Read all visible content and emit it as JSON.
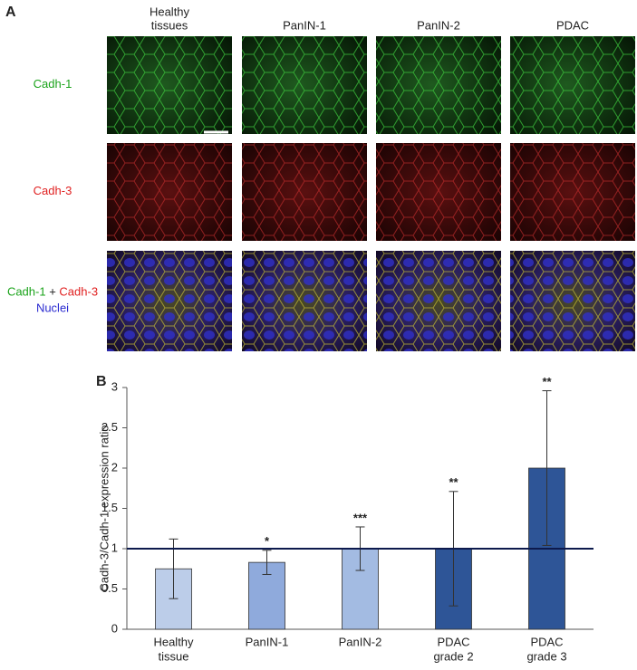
{
  "panel_a": {
    "label": "A",
    "column_headers": [
      [
        "Healthy",
        "tissues"
      ],
      [
        "PanIN-1"
      ],
      [
        "PanIN-2"
      ],
      [
        "PDAC"
      ]
    ],
    "row_labels": [
      {
        "lines": [
          [
            "Cadh-1"
          ]
        ]
      },
      {
        "lines": [
          [
            "Cadh-3"
          ]
        ]
      },
      {
        "lines": [
          [
            "Cadh-1",
            "+",
            "Cadh-3"
          ],
          [
            "Nuclei"
          ]
        ]
      }
    ]
  },
  "chart_data": {
    "type": "bar",
    "label": "B",
    "y_label": "Cadh-3/Cadh-1 expression ratio",
    "categories": [
      [
        "Healthy",
        "tissue"
      ],
      [
        "PanIN-1"
      ],
      [
        "PanIN-2"
      ],
      [
        "PDAC",
        "grade 2"
      ],
      [
        "PDAC",
        "grade 3"
      ]
    ],
    "values": [
      0.75,
      0.83,
      1.0,
      1.0,
      2.0
    ],
    "errors": [
      0.37,
      0.15,
      0.27,
      0.71,
      0.96
    ],
    "significance": [
      null,
      "*",
      "***",
      "**",
      "**"
    ],
    "colors": [
      "#bccde9",
      "#8faadc",
      "#a3bbe2",
      "#2e5597",
      "#2e5597"
    ],
    "reference_line": 1,
    "ylim": [
      0,
      3
    ],
    "yticks": [
      0,
      0.5,
      1,
      1.5,
      2,
      2.5,
      3
    ]
  }
}
